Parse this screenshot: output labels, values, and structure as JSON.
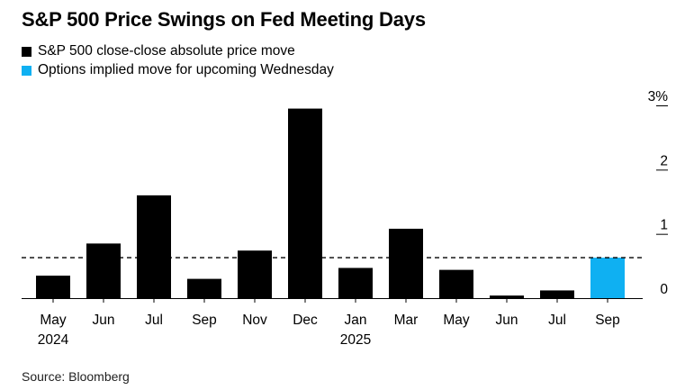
{
  "title": "S&P 500 Price Swings on Fed Meeting Days",
  "legend": [
    {
      "label": "S&P 500 close-close absolute price move",
      "color": "#000000"
    },
    {
      "label": "Options implied move for upcoming Wednesday",
      "color": "#0fb0f2"
    }
  ],
  "source": "Source: Bloomberg",
  "chart_data": {
    "type": "bar",
    "categories": [
      "May",
      "Jun",
      "Jul",
      "Sep",
      "Nov",
      "Dec",
      "Jan",
      "Mar",
      "May",
      "Jun",
      "Jul",
      "Sep"
    ],
    "year_labels": [
      "2024",
      "",
      "",
      "",
      "",
      "",
      "2025",
      "",
      "",
      "",
      "",
      ""
    ],
    "series": [
      {
        "name": "S&P 500 close-close absolute price move",
        "values": [
          0.35,
          0.85,
          1.6,
          0.3,
          0.74,
          2.95,
          0.47,
          1.08,
          0.44,
          0.04,
          0.12,
          null
        ],
        "color": "#000000"
      },
      {
        "name": "Options implied move for upcoming Wednesday",
        "values": [
          null,
          null,
          null,
          null,
          null,
          null,
          null,
          null,
          null,
          null,
          null,
          0.63
        ],
        "color": "#0fb0f2"
      }
    ],
    "reference_line": {
      "value": 0.63,
      "style": "dashed"
    },
    "yticks": [
      0,
      1,
      2,
      3
    ],
    "ytick_labels": [
      "0",
      "1",
      "2",
      "3%"
    ],
    "ylim": [
      0,
      3
    ],
    "yaxis_position": "right",
    "grid": false
  }
}
